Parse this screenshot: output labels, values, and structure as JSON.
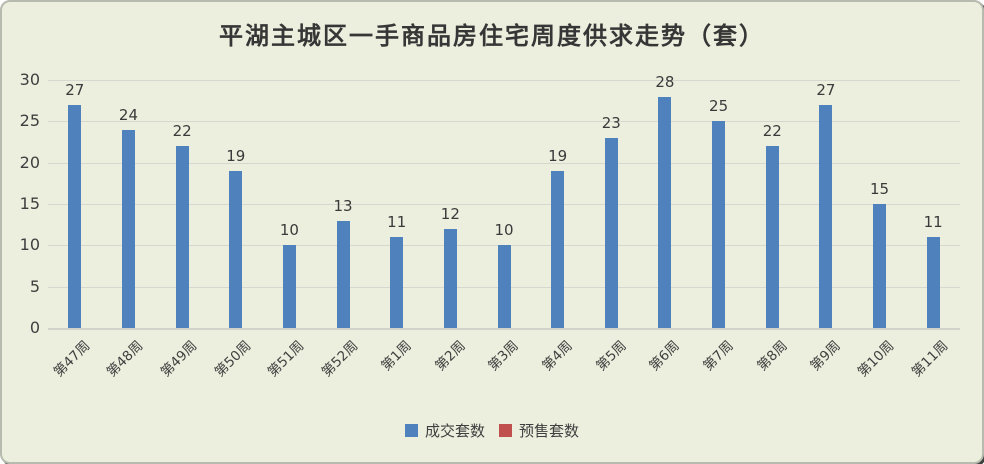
{
  "chart_data": {
    "type": "bar",
    "title": "平湖主城区一手商品房住宅周度供求走势（套）",
    "categories": [
      "第47周",
      "第48周",
      "第49周",
      "第50周",
      "第51周",
      "第52周",
      "第1周",
      "第2周",
      "第3周",
      "第4周",
      "第5周",
      "第6周",
      "第7周",
      "第8周",
      "第9周",
      "第10周",
      "第11周"
    ],
    "series": [
      {
        "name": "成交套数",
        "color": "#4F81BD",
        "values": [
          27,
          24,
          22,
          19,
          10,
          13,
          11,
          12,
          10,
          19,
          23,
          28,
          25,
          22,
          27,
          15,
          11
        ]
      },
      {
        "name": "预售套数",
        "color": "#C0504D",
        "values": []
      }
    ],
    "xlabel": "",
    "ylabel": "",
    "ylim": [
      0,
      30
    ],
    "yticks": [
      0,
      5,
      10,
      15,
      20,
      25,
      30
    ],
    "grid": true,
    "bar_labels": true,
    "legend_position": "bottom"
  },
  "colors": {
    "background": "#ECEFDE",
    "bar": "#4F81BD",
    "legend_red": "#C0504D",
    "gridline": "#D6D8D0",
    "text": "#3F3F3F"
  }
}
